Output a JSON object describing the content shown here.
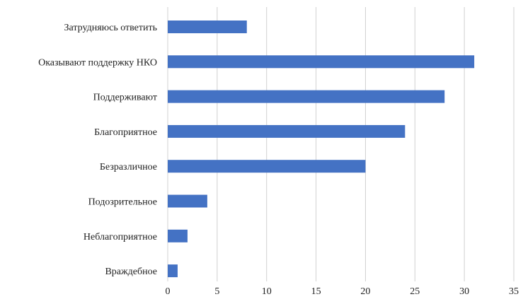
{
  "chart_data": {
    "type": "bar",
    "orientation": "horizontal",
    "categories": [
      "Затрудняюсь ответить",
      "Оказывают поддержку НКО",
      "Поддерживают",
      "Благоприятное",
      "Безразличное",
      "Подозрительное",
      "Неблагоприятное",
      "Враждебное"
    ],
    "values": [
      8,
      31,
      28,
      24,
      20,
      4,
      2,
      1
    ],
    "xticks": [
      "0",
      "5",
      "10",
      "15",
      "20",
      "25",
      "30",
      "35"
    ],
    "xlim": [
      0,
      35
    ],
    "grid": "vertical",
    "legend": "none",
    "bar_color": "#4472c4",
    "grid_color": "#d0d0d0"
  }
}
